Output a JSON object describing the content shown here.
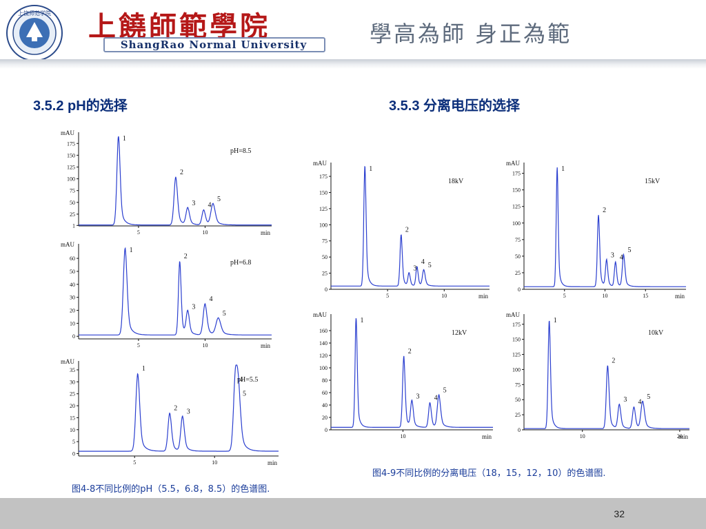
{
  "header": {
    "logo_text": "上饶师范学院",
    "title_cn": "上饒師範學院",
    "title_en": "ShangRao Normal University",
    "motto": "學高為師 身正為範"
  },
  "sections": {
    "left_title": "3.5.2 pH的选择",
    "right_title": "3.5.3 分离电压的选择",
    "left_caption": "图4-8不同比例的pH（5.5，6.8，8.5）的色谱图.",
    "right_caption": "图4-9不同比例的分离电压（18，15，12，10）的色谱图."
  },
  "footer": {
    "page": "32"
  },
  "colors": {
    "trace": "#2a3ecf",
    "accent": "#0b2e7a",
    "footer": "#c2c2c2"
  },
  "chart_data": [
    {
      "type": "line",
      "panel": "pH=8.5",
      "condition": "pH=8.5",
      "ylabel": "mAU",
      "xlabel": "min",
      "xlim": [
        0.5,
        15
      ],
      "ylim": [
        0,
        190
      ],
      "yticks": [
        1,
        25,
        50,
        75,
        100,
        125,
        150,
        175
      ],
      "xticks": [
        5,
        10
      ],
      "baseline": 2,
      "peaks": [
        {
          "label": "1",
          "x": 3.5,
          "height": 190,
          "width": 0.12
        },
        {
          "label": "2",
          "x": 7.8,
          "height": 102,
          "width": 0.13
        },
        {
          "label": "3",
          "x": 8.7,
          "height": 36,
          "width": 0.13
        },
        {
          "label": "4",
          "x": 9.9,
          "height": 32,
          "width": 0.13
        },
        {
          "label": "5",
          "x": 10.6,
          "height": 45,
          "width": 0.16
        }
      ]
    },
    {
      "type": "line",
      "panel": "pH=6.8",
      "condition": "pH=6.8",
      "ylabel": "mAU",
      "xlabel": "min",
      "xlim": [
        0.5,
        15
      ],
      "ylim": [
        -2,
        68
      ],
      "yticks": [
        0,
        10,
        20,
        30,
        40,
        50,
        60
      ],
      "xticks": [
        5,
        10
      ],
      "baseline": 1,
      "peaks": [
        {
          "label": "1",
          "x": 4.0,
          "height": 67,
          "width": 0.14
        },
        {
          "label": "2",
          "x": 8.1,
          "height": 57,
          "width": 0.1
        },
        {
          "label": "3",
          "x": 8.7,
          "height": 18,
          "width": 0.12
        },
        {
          "label": "4",
          "x": 10.0,
          "height": 24,
          "width": 0.14
        },
        {
          "label": "5",
          "x": 11.0,
          "height": 13,
          "width": 0.18
        }
      ]
    },
    {
      "type": "line",
      "panel": "pH=5.5",
      "condition": "pH=5.5",
      "ylabel": "mAU",
      "xlabel": "min",
      "xlim": [
        1.5,
        14
      ],
      "ylim": [
        -1,
        37
      ],
      "yticks": [
        0,
        5,
        10,
        15,
        20,
        25,
        30,
        35
      ],
      "xticks": [
        5,
        10
      ],
      "baseline": 1,
      "peaks": [
        {
          "label": "1",
          "x": 5.2,
          "height": 32.5,
          "width": 0.12
        },
        {
          "label": "2",
          "x": 7.2,
          "height": 16,
          "width": 0.11
        },
        {
          "label": "3",
          "x": 8.0,
          "height": 14.5,
          "width": 0.11
        },
        {
          "label": "4",
          "x": 11.3,
          "height": 28,
          "width": 0.12
        },
        {
          "label": "5",
          "x": 11.5,
          "height": 22,
          "width": 0.13
        }
      ]
    },
    {
      "type": "line",
      "panel": "18kV",
      "condition": "18kV",
      "ylabel": "mAU",
      "xlabel": "min",
      "xlim": [
        0,
        14
      ],
      "ylim": [
        0,
        190
      ],
      "yticks": [
        0,
        25,
        50,
        75,
        100,
        125,
        150,
        175
      ],
      "xticks": [
        5,
        10
      ],
      "baseline": 5,
      "peaks": [
        {
          "label": "1",
          "x": 3.0,
          "height": 188,
          "width": 0.1
        },
        {
          "label": "2",
          "x": 6.2,
          "height": 80,
          "width": 0.1
        },
        {
          "label": "3",
          "x": 6.9,
          "height": 20,
          "width": 0.1
        },
        {
          "label": "4",
          "x": 7.6,
          "height": 30,
          "width": 0.1
        },
        {
          "label": "5",
          "x": 8.2,
          "height": 25,
          "width": 0.12
        }
      ]
    },
    {
      "type": "line",
      "panel": "15kV",
      "condition": "15kV",
      "ylabel": "mAU",
      "xlabel": "min",
      "xlim": [
        0,
        20
      ],
      "ylim": [
        0,
        185
      ],
      "yticks": [
        0,
        25,
        50,
        75,
        100,
        125,
        150,
        175
      ],
      "xticks": [
        5,
        10,
        15
      ],
      "baseline": 4,
      "peaks": [
        {
          "label": "1",
          "x": 4.1,
          "height": 180,
          "width": 0.12
        },
        {
          "label": "2",
          "x": 9.2,
          "height": 108,
          "width": 0.14
        },
        {
          "label": "3",
          "x": 10.2,
          "height": 40,
          "width": 0.14
        },
        {
          "label": "4",
          "x": 11.3,
          "height": 37,
          "width": 0.14
        },
        {
          "label": "5",
          "x": 12.3,
          "height": 48,
          "width": 0.16
        }
      ]
    },
    {
      "type": "line",
      "panel": "12kV",
      "condition": "12kV",
      "ylabel": "mAU",
      "xlabel": "min",
      "xlim": [
        2,
        20
      ],
      "ylim": [
        0,
        180
      ],
      "yticks": [
        0,
        20,
        40,
        60,
        80,
        100,
        120,
        140,
        160
      ],
      "xticks": [
        10
      ],
      "baseline": 4,
      "peaks": [
        {
          "label": "1",
          "x": 4.8,
          "height": 178,
          "width": 0.12
        },
        {
          "label": "2",
          "x": 10.1,
          "height": 115,
          "width": 0.14
        },
        {
          "label": "3",
          "x": 11.0,
          "height": 42,
          "width": 0.15
        },
        {
          "label": "4",
          "x": 13.0,
          "height": 40,
          "width": 0.15
        },
        {
          "label": "5",
          "x": 14.0,
          "height": 52,
          "width": 0.18
        }
      ]
    },
    {
      "type": "line",
      "panel": "10kV",
      "condition": "10kV",
      "ylabel": "mAU",
      "xlabel": "min",
      "xlim": [
        4,
        21
      ],
      "ylim": [
        0,
        185
      ],
      "yticks": [
        0,
        25,
        50,
        75,
        100,
        125,
        150,
        175
      ],
      "xticks": [
        10,
        20
      ],
      "baseline": 2,
      "peaks": [
        {
          "label": "1",
          "x": 6.6,
          "height": 180,
          "width": 0.12
        },
        {
          "label": "2",
          "x": 12.6,
          "height": 105,
          "width": 0.14
        },
        {
          "label": "3",
          "x": 13.8,
          "height": 40,
          "width": 0.15
        },
        {
          "label": "4",
          "x": 15.3,
          "height": 36,
          "width": 0.15
        },
        {
          "label": "5",
          "x": 16.2,
          "height": 45,
          "width": 0.18
        }
      ]
    }
  ]
}
